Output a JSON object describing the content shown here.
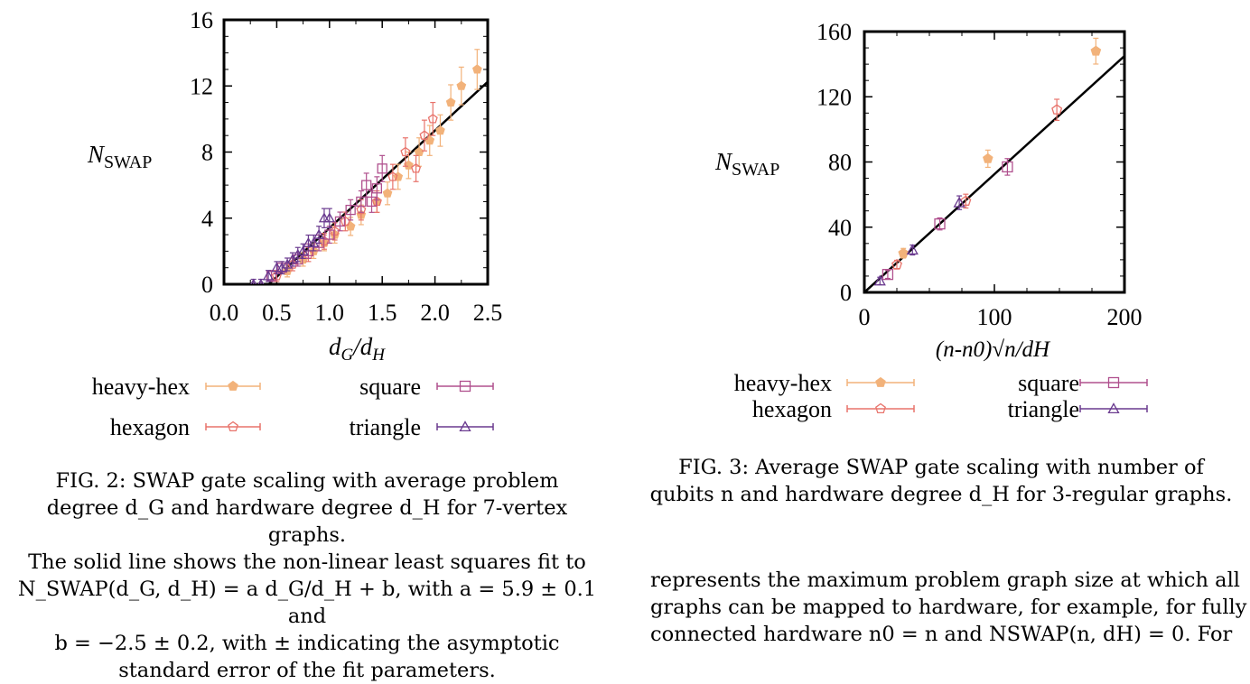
{
  "fig2": {
    "ylabel_main": "N",
    "ylabel_sub": "SWAP",
    "xlabel_a": "d",
    "xlabel_a_sub": "G",
    "xlabel_slash": "/",
    "xlabel_b": "d",
    "xlabel_b_sub": "H",
    "xticks": [
      "0.0",
      "0.5",
      "1.0",
      "1.5",
      "2.0",
      "2.5"
    ],
    "yticks": [
      "0",
      "4",
      "8",
      "12",
      "16"
    ],
    "legend": [
      "heavy-hex",
      "square",
      "hexagon",
      "triangle"
    ],
    "caption_lines": [
      "FIG. 2: SWAP gate scaling with average problem",
      "degree d_G and hardware degree d_H for 7-vertex graphs.",
      "The solid line shows the non-linear least squares fit to",
      "N_SWAP(d_G, d_H) = a d_G/d_H + b, with a = 5.9 ± 0.1 and",
      "b = −2.5 ± 0.2, with ± indicating the asymptotic",
      "standard error of the fit parameters."
    ]
  },
  "fig3": {
    "ylabel_main": "N",
    "ylabel_sub": "SWAP",
    "xlabel": "(n-n0)√n/dH",
    "xticks": [
      "0",
      "100",
      "200"
    ],
    "yticks": [
      "0",
      "40",
      "80",
      "120",
      "160"
    ],
    "legend": [
      "heavy-hex",
      "square",
      "hexagon",
      "triangle"
    ],
    "caption_lines": [
      "FIG. 3: Average SWAP gate scaling with number of",
      "qubits n and hardware degree d_H for 3-regular graphs."
    ]
  },
  "body_text": [
    "represents the maximum problem graph size at which all",
    "graphs can be mapped to hardware, for example, for fully",
    "connected hardware n0 = n and NSWAP(n, dH) = 0. For"
  ],
  "colors": {
    "heavy-hex": "#f2b27a",
    "hexagon": "#e8736b",
    "square": "#b0508e",
    "triangle": "#6a3a8f"
  },
  "chart_data": [
    {
      "type": "scatter",
      "title": "",
      "xlabel": "d_G/d_H",
      "ylabel": "N_SWAP",
      "xlim": [
        0,
        2.5
      ],
      "ylim": [
        0,
        16
      ],
      "fit_line": {
        "a": 5.9,
        "b": -2.5
      },
      "series": [
        {
          "name": "heavy-hex",
          "x": [
            0.6,
            0.75,
            0.85,
            0.95,
            1.05,
            1.2,
            1.3,
            1.45,
            1.55,
            1.65,
            1.75,
            1.85,
            1.95,
            2.05,
            2.15,
            2.25,
            2.4
          ],
          "y": [
            0.8,
            1.5,
            2.0,
            2.5,
            3.0,
            3.5,
            4.2,
            5.0,
            5.5,
            6.5,
            7.2,
            8.0,
            8.7,
            9.3,
            11.0,
            12.0,
            13.0
          ]
        },
        {
          "name": "hexagon",
          "x": [
            0.5,
            0.65,
            0.8,
            0.95,
            1.05,
            1.15,
            1.3,
            1.45,
            1.6,
            1.72,
            1.82,
            1.9,
            1.98
          ],
          "y": [
            0.5,
            1.2,
            1.8,
            2.6,
            3.2,
            3.8,
            4.5,
            5.0,
            6.5,
            8.0,
            7.0,
            9.0,
            10.0
          ]
        },
        {
          "name": "square",
          "x": [
            0.45,
            0.55,
            0.7,
            0.8,
            0.9,
            1.0,
            1.1,
            1.2,
            1.3,
            1.35,
            1.4,
            1.45,
            1.5
          ],
          "y": [
            0.5,
            1.0,
            1.5,
            2.0,
            2.5,
            3.0,
            3.8,
            4.5,
            5.0,
            6.0,
            5.0,
            5.8,
            7.0
          ]
        },
        {
          "name": "triangle",
          "x": [
            0.28,
            0.35,
            0.42,
            0.5,
            0.55,
            0.6,
            0.65,
            0.7,
            0.75,
            0.8,
            0.85,
            0.9,
            0.95,
            1.0
          ],
          "y": [
            0.0,
            0.0,
            0.5,
            1.0,
            1.0,
            1.2,
            1.5,
            1.8,
            2.0,
            2.5,
            2.5,
            3.0,
            4.0,
            4.0
          ]
        }
      ]
    },
    {
      "type": "scatter",
      "title": "",
      "xlabel": "(n-n0)√n/dH",
      "ylabel": "N_SWAP",
      "xlim": [
        0,
        200
      ],
      "ylim": [
        0,
        160
      ],
      "fit_line": {
        "slope": 0.725,
        "intercept": 0
      },
      "series": [
        {
          "name": "heavy-hex",
          "x": [
            30,
            95,
            178
          ],
          "y": [
            24,
            82,
            148
          ]
        },
        {
          "name": "hexagon",
          "x": [
            25,
            78,
            148
          ],
          "y": [
            17,
            56,
            112
          ]
        },
        {
          "name": "square",
          "x": [
            18,
            58,
            110
          ],
          "y": [
            11,
            42,
            77
          ]
        },
        {
          "name": "triangle",
          "x": [
            12,
            37,
            73
          ],
          "y": [
            7,
            26,
            55
          ]
        }
      ]
    }
  ]
}
